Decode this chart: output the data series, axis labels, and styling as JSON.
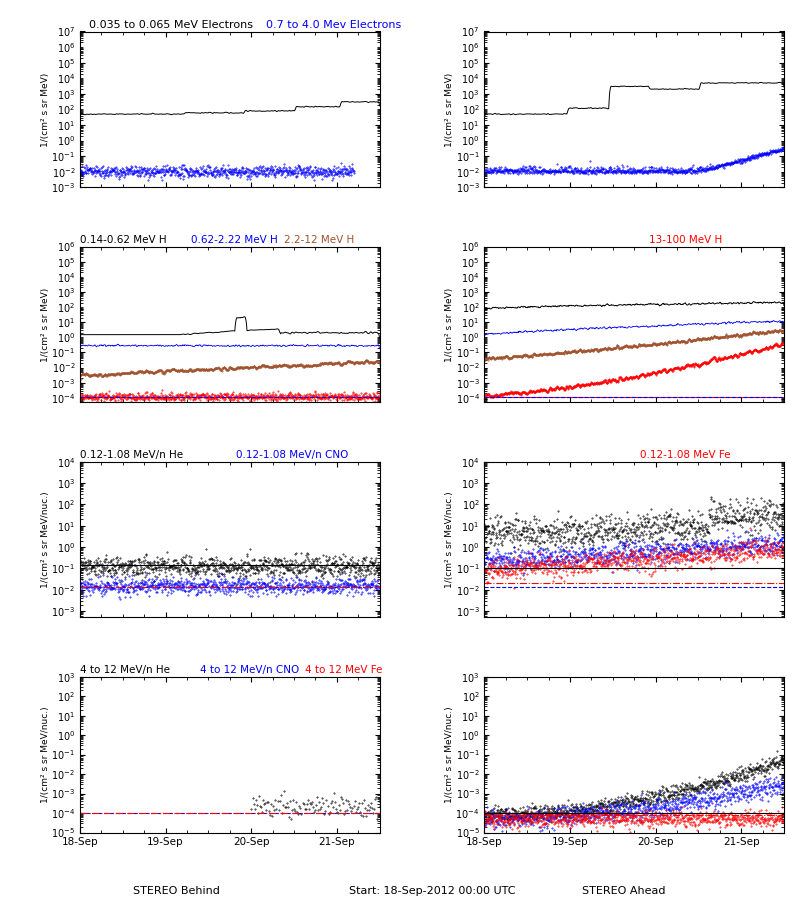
{
  "titles": {
    "r0_left_black": "0.035 to 0.065 MeV Electrons",
    "r0_left_blue": "0.7 to 4.0 Mev Electrons",
    "r1_t1": "0.14-0.62 MeV H",
    "r1_t2": "0.62-2.22 MeV H",
    "r1_t3": "2.2-12 MeV H",
    "r1_t4": "13-100 MeV H",
    "r2_t1": "0.12-1.08 MeV/n He",
    "r2_t2": "0.12-1.08 MeV/n CNO",
    "r2_t3": "0.12-1.08 MeV Fe",
    "r3_t1": "4 to 12 MeV/n He",
    "r3_t2": "4 to 12 MeV/n CNO",
    "r3_t3": "4 to 12 MeV Fe"
  },
  "xlabels": [
    "18-Sep",
    "19-Sep",
    "20-Sep",
    "21-Sep"
  ],
  "footer_left": "STEREO Behind",
  "footer_center": "Start: 18-Sep-2012 00:00 UTC",
  "footer_right": "STEREO Ahead",
  "ylabel_e": "1/(cm² s sr MeV)",
  "ylabel_h": "1/(cm² s sr MeV)",
  "ylabel_nu": "1/(cm² s sr MeV/nuc.)",
  "colors": {
    "black": "#000000",
    "blue": "#0000FF",
    "brown": "#A0522D",
    "red": "#FF0000"
  },
  "seed": 42
}
